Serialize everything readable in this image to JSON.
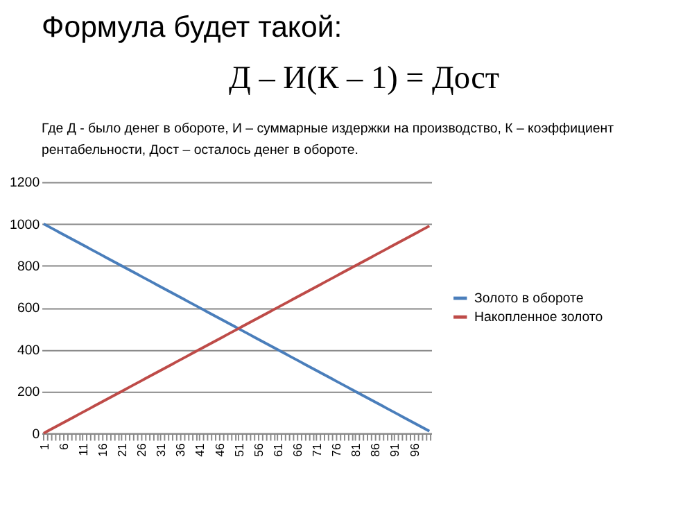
{
  "chart_data": {
    "type": "line",
    "title": "Формула будет такой:",
    "subtitle": "Д – И(К – 1) = Дост",
    "annotations": [
      "Где Д - было денег в обороте, И – суммарные издержки на производство, К – коэффициент рентабельности, Дост – осталось денег в обороте."
    ],
    "categories": [
      "1",
      null,
      null,
      null,
      null,
      "6",
      null,
      null,
      null,
      null,
      "11",
      null,
      null,
      null,
      null,
      "16",
      null,
      null,
      null,
      null,
      "21",
      null,
      null,
      null,
      null,
      "26",
      null,
      null,
      null,
      null,
      "31",
      null,
      null,
      null,
      null,
      "36",
      null,
      null,
      null,
      null,
      "41",
      null,
      null,
      null,
      null,
      "46",
      null,
      null,
      null,
      null,
      "51",
      null,
      null,
      null,
      null,
      "56",
      null,
      null,
      null,
      null,
      "61",
      null,
      null,
      null,
      null,
      "66",
      null,
      null,
      null,
      null,
      "71",
      null,
      null,
      null,
      null,
      "76",
      null,
      null,
      null,
      null,
      "81",
      null,
      null,
      null,
      null,
      "86",
      null,
      null,
      null,
      null,
      "91",
      null,
      null,
      null,
      null,
      "96",
      null,
      null,
      null,
      null
    ],
    "series": [
      {
        "name": "Золото в обороте",
        "color": "#4a7ebb",
        "values": [
          1000,
          990,
          980,
          970,
          960,
          950,
          940,
          930,
          920,
          910,
          900,
          890,
          880,
          870,
          860,
          850,
          840,
          830,
          820,
          810,
          800,
          790,
          780,
          770,
          760,
          750,
          740,
          730,
          720,
          710,
          700,
          690,
          680,
          670,
          660,
          650,
          640,
          630,
          620,
          610,
          600,
          590,
          580,
          570,
          560,
          550,
          540,
          530,
          520,
          510,
          500,
          490,
          480,
          470,
          460,
          450,
          440,
          430,
          420,
          410,
          400,
          390,
          380,
          370,
          360,
          350,
          340,
          330,
          320,
          310,
          300,
          290,
          280,
          270,
          260,
          250,
          240,
          230,
          220,
          210,
          200,
          190,
          180,
          170,
          160,
          150,
          140,
          130,
          120,
          110,
          100,
          90,
          80,
          70,
          60,
          50,
          40,
          30,
          20,
          10
        ]
      },
      {
        "name": "Накопленное золото",
        "color": "#be4b48",
        "values": [
          0,
          10,
          20,
          30,
          40,
          50,
          60,
          70,
          80,
          90,
          100,
          110,
          120,
          130,
          140,
          150,
          160,
          170,
          180,
          190,
          200,
          210,
          220,
          230,
          240,
          250,
          260,
          270,
          280,
          290,
          300,
          310,
          320,
          330,
          340,
          350,
          360,
          370,
          380,
          390,
          400,
          410,
          420,
          430,
          440,
          450,
          460,
          470,
          480,
          490,
          500,
          510,
          520,
          530,
          540,
          550,
          560,
          570,
          580,
          590,
          600,
          610,
          620,
          630,
          640,
          650,
          660,
          670,
          680,
          690,
          700,
          710,
          720,
          730,
          740,
          750,
          760,
          770,
          780,
          790,
          800,
          810,
          820,
          830,
          840,
          850,
          860,
          870,
          880,
          890,
          900,
          910,
          920,
          930,
          940,
          950,
          960,
          970,
          980,
          990
        ]
      }
    ],
    "ylim": [
      0,
      1200
    ],
    "yticks": [
      0,
      200,
      400,
      600,
      800,
      1000,
      1200
    ],
    "grid": "y",
    "legend": "right",
    "marker": "none",
    "line_style": "solid"
  }
}
